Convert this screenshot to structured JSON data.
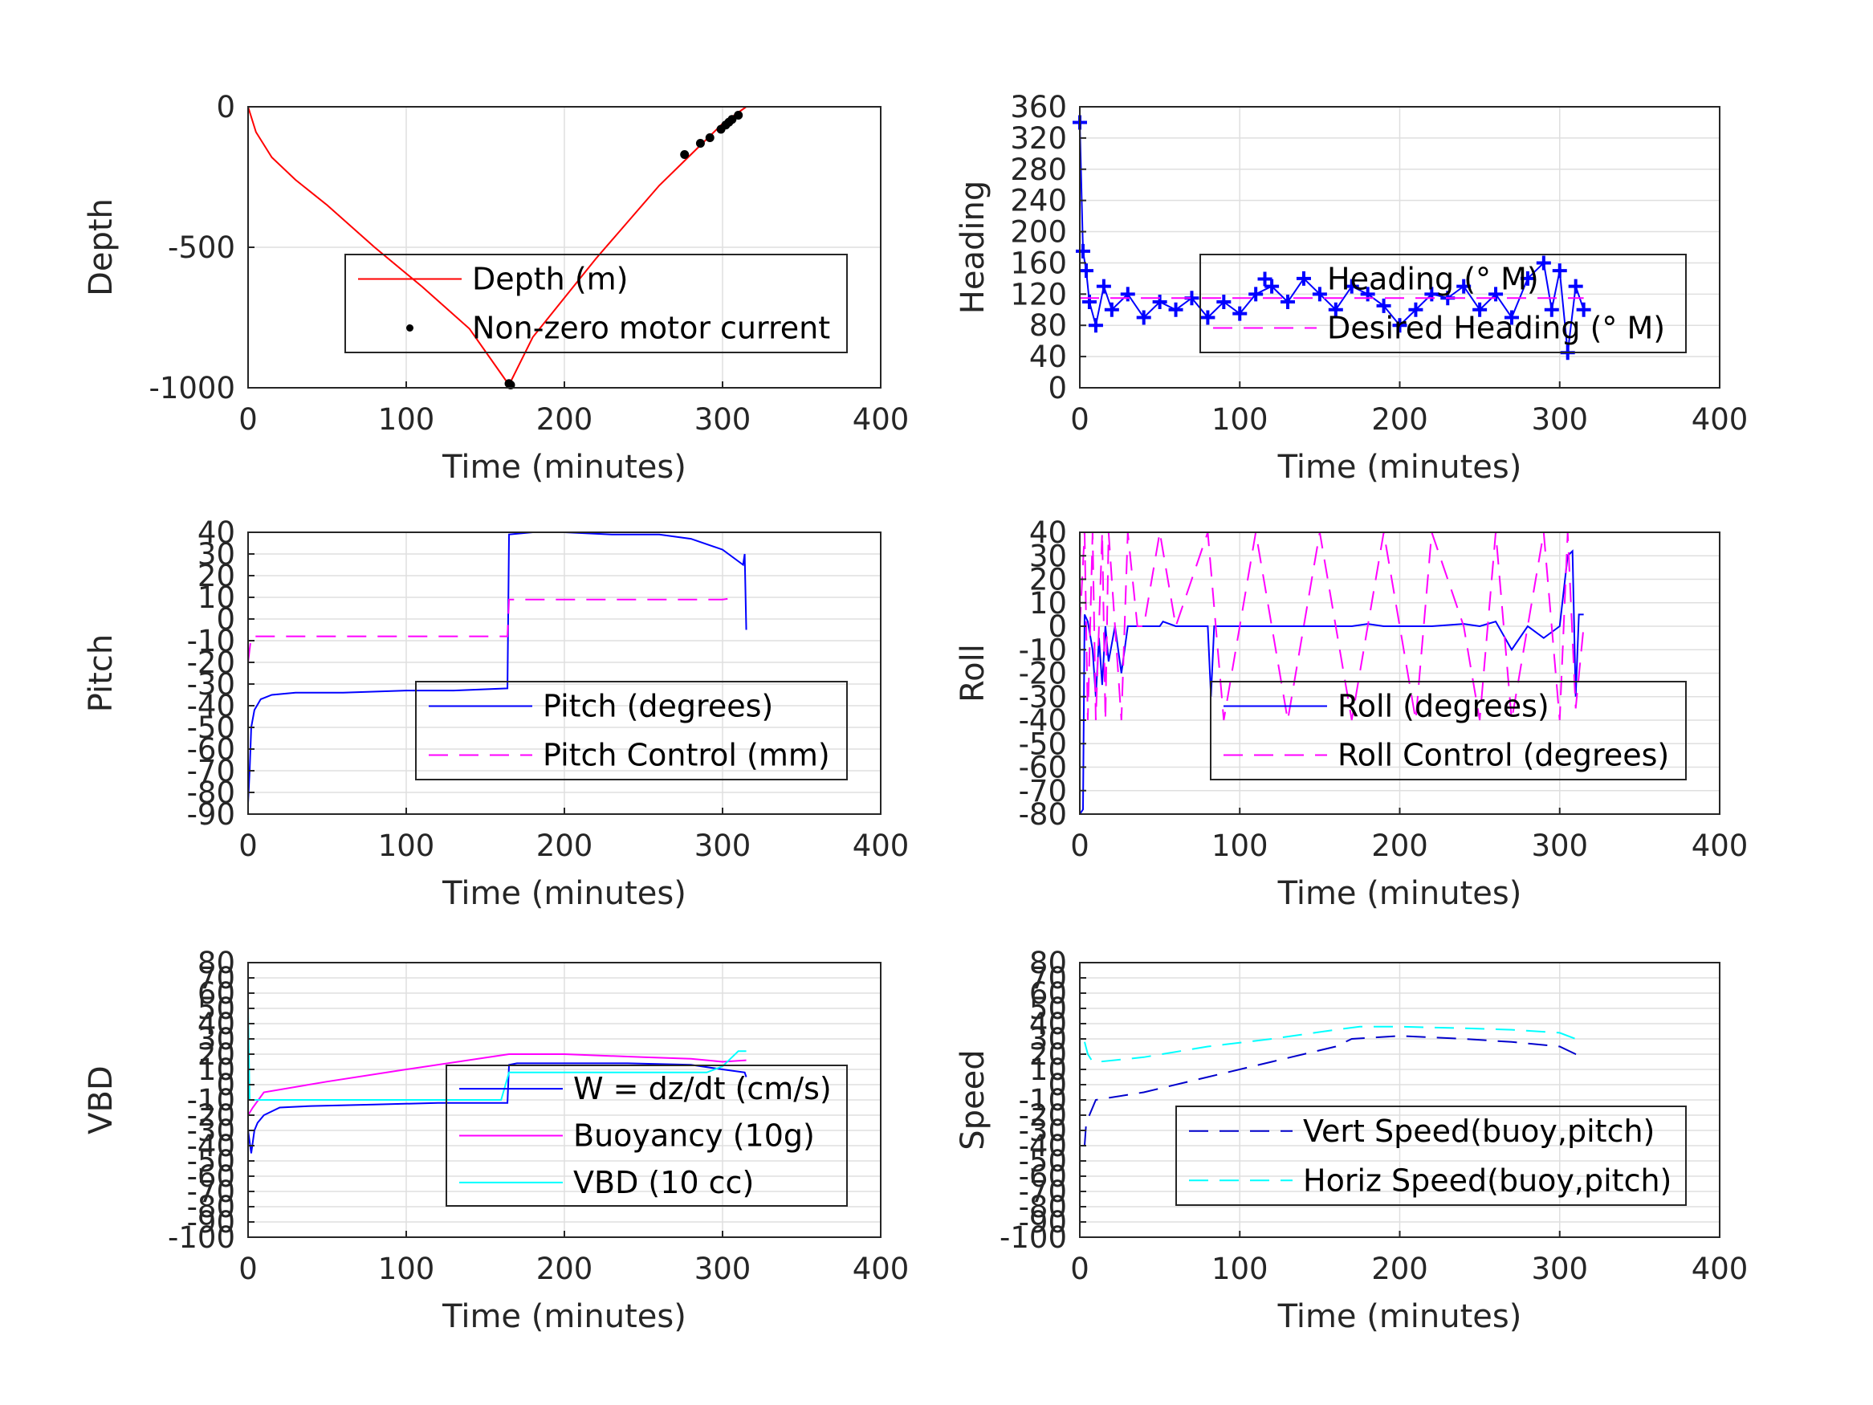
{
  "chart_data": [
    {
      "type": "line",
      "xlabel": "Time (minutes)",
      "ylabel": "Depth",
      "xlim": [
        0,
        400
      ],
      "ylim": [
        -1000,
        0
      ],
      "xticks": [
        "0",
        "100",
        "200",
        "300",
        "400"
      ],
      "yticks": [
        "-1000",
        "-500",
        "0"
      ],
      "grid": true,
      "legend": "center-right",
      "series": [
        {
          "name": "Depth (m)",
          "color": "#ff0000",
          "style": "solid",
          "x": [
            0,
            5,
            15,
            30,
            50,
            80,
            110,
            140,
            165,
            180,
            200,
            220,
            240,
            260,
            280,
            300,
            315
          ],
          "y": [
            0,
            -90,
            -180,
            -260,
            -350,
            -500,
            -640,
            -790,
            -990,
            -820,
            -680,
            -540,
            -410,
            -280,
            -170,
            -60,
            0
          ]
        },
        {
          "name": "Non-zero motor current",
          "color": "#000000",
          "style": "marker",
          "x": [
            165,
            166,
            276,
            286,
            292,
            299,
            302,
            304,
            306,
            310
          ],
          "y": [
            -985,
            -990,
            -170,
            -130,
            -110,
            -80,
            -65,
            -55,
            -45,
            -30
          ]
        }
      ]
    },
    {
      "type": "line",
      "xlabel": "Time (minutes)",
      "ylabel": "Heading",
      "xlim": [
        0,
        400
      ],
      "ylim": [
        0,
        360
      ],
      "xticks": [
        "0",
        "100",
        "200",
        "300",
        "400"
      ],
      "yticks": [
        "0",
        "40",
        "80",
        "120",
        "160",
        "200",
        "240",
        "280",
        "320",
        "360"
      ],
      "grid": true,
      "legend": "center-right",
      "series": [
        {
          "name": "Heading (° M)",
          "color": "#0000ff",
          "style": "marker",
          "x": [
            0,
            2,
            4,
            6,
            10,
            15,
            20,
            30,
            40,
            50,
            60,
            70,
            80,
            90,
            100,
            110,
            120,
            130,
            140,
            150,
            160,
            170,
            180,
            190,
            200,
            210,
            220,
            230,
            240,
            250,
            260,
            270,
            280,
            290,
            295,
            300,
            305,
            310,
            315
          ],
          "y": [
            340,
            175,
            150,
            110,
            80,
            130,
            100,
            120,
            90,
            110,
            100,
            115,
            90,
            110,
            95,
            120,
            130,
            110,
            140,
            120,
            100,
            130,
            120,
            105,
            80,
            100,
            120,
            115,
            130,
            100,
            120,
            90,
            140,
            160,
            100,
            150,
            45,
            130,
            100
          ]
        },
        {
          "name": "Desired Heading (° M)",
          "color": "#ff00ff",
          "style": "dashed",
          "x": [
            0,
            315
          ],
          "y": [
            115,
            115
          ]
        }
      ]
    },
    {
      "type": "line",
      "xlabel": "Time (minutes)",
      "ylabel": "Pitch",
      "xlim": [
        0,
        400
      ],
      "ylim": [
        -90,
        40
      ],
      "xticks": [
        "0",
        "100",
        "200",
        "300",
        "400"
      ],
      "yticks": [
        "-90",
        "-80",
        "-70",
        "-60",
        "-50",
        "-40",
        "-30",
        "-20",
        "-10",
        "0",
        "10",
        "20",
        "30",
        "40"
      ],
      "grid": true,
      "legend": "center-right",
      "series": [
        {
          "name": "Pitch (degrees)",
          "color": "#0000ff",
          "style": "solid",
          "x": [
            0,
            1,
            2,
            4,
            8,
            15,
            30,
            60,
            100,
            130,
            164,
            165,
            180,
            200,
            230,
            260,
            280,
            300,
            313,
            314,
            315
          ],
          "y": [
            -85,
            -70,
            -50,
            -42,
            -37,
            -35,
            -34,
            -34,
            -33,
            -33,
            -32,
            39,
            40,
            40,
            39,
            39,
            37,
            32,
            25,
            30,
            -5
          ]
        },
        {
          "name": "Pitch Control (mm)",
          "color": "#ff00ff",
          "style": "dashed",
          "x": [
            0,
            2,
            4,
            164,
            165,
            300,
            310
          ],
          "y": [
            -20,
            -8,
            -8,
            -8,
            9,
            9,
            10
          ]
        }
      ]
    },
    {
      "type": "line",
      "xlabel": "Time (minutes)",
      "ylabel": "Roll",
      "xlim": [
        0,
        400
      ],
      "ylim": [
        -80,
        40
      ],
      "xticks": [
        "0",
        "100",
        "200",
        "300",
        "400"
      ],
      "yticks": [
        "-80",
        "-70",
        "-60",
        "-50",
        "-40",
        "-30",
        "-20",
        "-10",
        "0",
        "10",
        "20",
        "30",
        "40"
      ],
      "grid": true,
      "legend": "center-right",
      "series": [
        {
          "name": "Roll (degrees)",
          "color": "#0000ff",
          "style": "solid",
          "x": [
            0,
            2,
            3,
            5,
            8,
            10,
            12,
            14,
            16,
            18,
            22,
            26,
            30,
            36,
            40,
            50,
            52,
            60,
            80,
            82,
            84,
            90,
            100,
            110,
            130,
            150,
            170,
            180,
            190,
            200,
            210,
            220,
            240,
            250,
            260,
            270,
            280,
            290,
            300,
            305,
            308,
            310,
            312,
            315
          ],
          "y": [
            -80,
            -78,
            5,
            2,
            -10,
            -30,
            -5,
            -25,
            0,
            -15,
            0,
            -20,
            0,
            0,
            0,
            0,
            2,
            0,
            0,
            -30,
            0,
            0,
            0,
            0,
            0,
            0,
            0,
            1,
            0,
            0,
            0,
            0,
            1,
            0,
            2,
            -10,
            0,
            -5,
            0,
            30,
            32,
            -30,
            5,
            5
          ]
        },
        {
          "name": "Roll Control (degrees)",
          "color": "#ff00ff",
          "style": "dashed",
          "x": [
            0,
            3,
            5,
            8,
            10,
            14,
            16,
            18,
            22,
            26,
            30,
            36,
            40,
            50,
            60,
            80,
            90,
            100,
            110,
            130,
            150,
            170,
            180,
            190,
            200,
            210,
            220,
            240,
            250,
            260,
            270,
            280,
            290,
            300,
            305,
            310,
            315
          ],
          "y": [
            0,
            40,
            -40,
            40,
            -40,
            40,
            -40,
            40,
            0,
            -40,
            40,
            0,
            0,
            40,
            0,
            40,
            -40,
            0,
            40,
            -40,
            40,
            -40,
            0,
            40,
            0,
            -40,
            40,
            0,
            -40,
            40,
            -40,
            0,
            40,
            -40,
            40,
            -35,
            0
          ]
        }
      ]
    },
    {
      "type": "line",
      "xlabel": "Time (minutes)",
      "ylabel": "VBD",
      "xlim": [
        0,
        400
      ],
      "ylim": [
        -100,
        80
      ],
      "xticks": [
        "0",
        "100",
        "200",
        "300",
        "400"
      ],
      "yticks": [
        "-100",
        "-90",
        "-80",
        "-70",
        "-60",
        "-50",
        "-40",
        "-30",
        "-20",
        "-10",
        "0",
        "10",
        "20",
        "30",
        "40",
        "50",
        "60",
        "70",
        "80"
      ],
      "grid": true,
      "legend": "center-right",
      "series": [
        {
          "name": "W = dz/dt (cm/s)",
          "color": "#0000ff",
          "style": "solid",
          "x": [
            0,
            2,
            4,
            6,
            10,
            20,
            40,
            80,
            120,
            164,
            165,
            170,
            200,
            240,
            280,
            300,
            314,
            315
          ],
          "y": [
            -30,
            -45,
            -30,
            -25,
            -20,
            -15,
            -14,
            -13,
            -12,
            -12,
            13,
            14,
            14,
            14,
            13,
            10,
            8,
            5
          ]
        },
        {
          "name": "Buoyancy (10g)",
          "color": "#ff00ff",
          "style": "solid",
          "x": [
            0,
            3,
            10,
            50,
            100,
            165,
            200,
            250,
            280,
            300,
            315
          ],
          "y": [
            -20,
            -15,
            -5,
            2,
            10,
            20,
            20,
            18,
            17,
            15,
            16
          ]
        },
        {
          "name": "VBD (10 cc)",
          "color": "#00ffff",
          "style": "solid",
          "x": [
            0,
            1,
            3,
            8,
            160,
            165,
            170,
            290,
            300,
            310,
            315
          ],
          "y": [
            50,
            -10,
            -10,
            -10,
            -10,
            8,
            8,
            8,
            12,
            22,
            22
          ]
        }
      ]
    },
    {
      "type": "line",
      "xlabel": "Time (minutes)",
      "ylabel": "Speed",
      "xlim": [
        0,
        400
      ],
      "ylim": [
        -100,
        80
      ],
      "xticks": [
        "0",
        "100",
        "200",
        "300",
        "400"
      ],
      "yticks": [
        "-100",
        "-90",
        "-80",
        "-70",
        "-60",
        "-50",
        "-40",
        "-30",
        "-20",
        "-10",
        "0",
        "10",
        "20",
        "30",
        "40",
        "50",
        "60",
        "70",
        "80"
      ],
      "grid": true,
      "legend": "lower-right",
      "series": [
        {
          "name": "Vert Speed(buoy,pitch)",
          "color": "#0000cc",
          "style": "dashed",
          "x": [
            3,
            4,
            6,
            10,
            40,
            80,
            120,
            160,
            170,
            200,
            240,
            270,
            300,
            310,
            315
          ],
          "y": [
            -40,
            -25,
            -20,
            -10,
            -5,
            5,
            15,
            25,
            30,
            32,
            30,
            28,
            25,
            20,
            18
          ]
        },
        {
          "name": "Horiz Speed(buoy,pitch)",
          "color": "#00ffff",
          "style": "dashed",
          "x": [
            3,
            5,
            8,
            12,
            40,
            80,
            120,
            160,
            175,
            200,
            240,
            270,
            300,
            310,
            315
          ],
          "y": [
            28,
            20,
            15,
            15,
            18,
            25,
            30,
            36,
            38,
            38,
            37,
            36,
            34,
            30,
            30
          ]
        }
      ]
    }
  ]
}
